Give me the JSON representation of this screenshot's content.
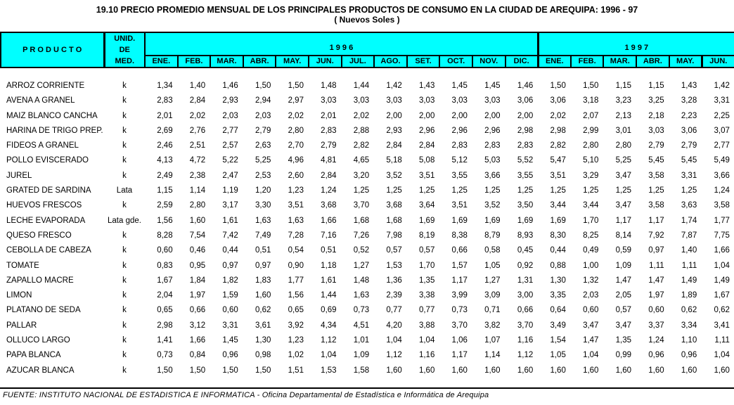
{
  "title": "19.10 PRECIO PROMEDIO MENSUAL DE LOS PRINCIPALES PRODUCTOS DE CONSUMO EN LA CIUDAD DE AREQUIPA: 1996 - 97",
  "subtitle": "( Nuevos Soles )",
  "colors": {
    "header_bg": "#00FFFF",
    "border": "#000000",
    "background": "#FFFFFF"
  },
  "table": {
    "product_header": "P R O D U C T O",
    "unit_header_lines": [
      "UNID.",
      "DE",
      "MED."
    ],
    "year_1996_label": "1 9 9 6",
    "year_1997_label": "1 9 9 7",
    "months_1996": [
      "ENE.",
      "FEB.",
      "MAR.",
      "ABR.",
      "MAY.",
      "JUN.",
      "JUL.",
      "AGO.",
      "SET.",
      "OCT.",
      "NOV.",
      "DIC."
    ],
    "months_1997": [
      "ENE.",
      "FEB.",
      "MAR.",
      "ABR.",
      "MAY.",
      "JUN."
    ],
    "rows": [
      {
        "product": "ARROZ CORRIENTE",
        "unit": "k",
        "values_1996": [
          "1,34",
          "1,40",
          "1,46",
          "1,50",
          "1,50",
          "1,48",
          "1,44",
          "1,42",
          "1,43",
          "1,45",
          "1,45",
          "1,46"
        ],
        "values_1997": [
          "1,50",
          "1,50",
          "1,15",
          "1,15",
          "1,43",
          "1,42"
        ]
      },
      {
        "product": "AVENA A GRANEL",
        "unit": "k",
        "values_1996": [
          "2,83",
          "2,84",
          "2,93",
          "2,94",
          "2,97",
          "3,03",
          "3,03",
          "3,03",
          "3,03",
          "3,03",
          "3,03",
          "3,06"
        ],
        "values_1997": [
          "3,06",
          "3,18",
          "3,23",
          "3,25",
          "3,28",
          "3,31"
        ]
      },
      {
        "product": "MAIZ BLANCO CANCHA",
        "unit": "k",
        "values_1996": [
          "2,01",
          "2,02",
          "2,03",
          "2,03",
          "2,02",
          "2,01",
          "2,02",
          "2,00",
          "2,00",
          "2,00",
          "2,00",
          "2,00"
        ],
        "values_1997": [
          "2,02",
          "2,07",
          "2,13",
          "2,18",
          "2,23",
          "2,25"
        ]
      },
      {
        "product": "HARINA DE TRIGO PREP.",
        "unit": "k",
        "values_1996": [
          "2,69",
          "2,76",
          "2,77",
          "2,79",
          "2,80",
          "2,83",
          "2,88",
          "2,93",
          "2,96",
          "2,96",
          "2,96",
          "2,98"
        ],
        "values_1997": [
          "2,98",
          "2,99",
          "3,01",
          "3,03",
          "3,06",
          "3,07"
        ]
      },
      {
        "product": "FIDEOS A GRANEL",
        "unit": "k",
        "values_1996": [
          "2,46",
          "2,51",
          "2,57",
          "2,63",
          "2,70",
          "2,79",
          "2,82",
          "2,84",
          "2,84",
          "2,83",
          "2,83",
          "2,83"
        ],
        "values_1997": [
          "2,82",
          "2,80",
          "2,80",
          "2,79",
          "2,79",
          "2,77"
        ]
      },
      {
        "product": "POLLO EVISCERADO",
        "unit": "k",
        "values_1996": [
          "4,13",
          "4,72",
          "5,22",
          "5,25",
          "4,96",
          "4,81",
          "4,65",
          "5,18",
          "5,08",
          "5,12",
          "5,03",
          "5,52"
        ],
        "values_1997": [
          "5,47",
          "5,10",
          "5,25",
          "5,45",
          "5,45",
          "5,49"
        ]
      },
      {
        "product": "JUREL",
        "unit": "k",
        "values_1996": [
          "2,49",
          "2,38",
          "2,47",
          "2,53",
          "2,60",
          "2,84",
          "3,20",
          "3,52",
          "3,51",
          "3,55",
          "3,66",
          "3,55"
        ],
        "values_1997": [
          "3,51",
          "3,29",
          "3,47",
          "3,58",
          "3,31",
          "3,66"
        ]
      },
      {
        "product": "GRATED DE SARDINA",
        "unit": "Lata",
        "values_1996": [
          "1,15",
          "1,14",
          "1,19",
          "1,20",
          "1,23",
          "1,24",
          "1,25",
          "1,25",
          "1,25",
          "1,25",
          "1,25",
          "1,25"
        ],
        "values_1997": [
          "1,25",
          "1,25",
          "1,25",
          "1,25",
          "1,25",
          "1,24"
        ]
      },
      {
        "product": "HUEVOS FRESCOS",
        "unit": "k",
        "values_1996": [
          "2,59",
          "2,80",
          "3,17",
          "3,30",
          "3,51",
          "3,68",
          "3,70",
          "3,68",
          "3,64",
          "3,51",
          "3,52",
          "3,50"
        ],
        "values_1997": [
          "3,44",
          "3,44",
          "3,47",
          "3,58",
          "3,63",
          "3,58"
        ]
      },
      {
        "product": "LECHE EVAPORADA",
        "unit": "Lata gde.",
        "values_1996": [
          "1,56",
          "1,60",
          "1,61",
          "1,63",
          "1,63",
          "1,66",
          "1,68",
          "1,68",
          "1,69",
          "1,69",
          "1,69",
          "1,69"
        ],
        "values_1997": [
          "1,69",
          "1,70",
          "1,17",
          "1,17",
          "1,74",
          "1,77"
        ]
      },
      {
        "product": "QUESO FRESCO",
        "unit": "k",
        "values_1996": [
          "8,28",
          "7,54",
          "7,42",
          "7,49",
          "7,28",
          "7,16",
          "7,26",
          "7,98",
          "8,19",
          "8,38",
          "8,79",
          "8,93"
        ],
        "values_1997": [
          "8,30",
          "8,25",
          "8,14",
          "7,92",
          "7,87",
          "7,75"
        ]
      },
      {
        "product": "CEBOLLA DE CABEZA",
        "unit": "k",
        "values_1996": [
          "0,60",
          "0,46",
          "0,44",
          "0,51",
          "0,54",
          "0,51",
          "0,52",
          "0,57",
          "0,57",
          "0,66",
          "0,58",
          "0,45"
        ],
        "values_1997": [
          "0,44",
          "0,49",
          "0,59",
          "0,97",
          "1,40",
          "1,66"
        ]
      },
      {
        "product": "TOMATE",
        "unit": "k",
        "values_1996": [
          "0,83",
          "0,95",
          "0,97",
          "0,97",
          "0,90",
          "1,18",
          "1,27",
          "1,53",
          "1,70",
          "1,57",
          "1,05",
          "0,92"
        ],
        "values_1997": [
          "0,88",
          "1,00",
          "1,09",
          "1,11",
          "1,11",
          "1,04"
        ]
      },
      {
        "product": "ZAPALLO MACRE",
        "unit": "k",
        "values_1996": [
          "1,67",
          "1,84",
          "1,82",
          "1,83",
          "1,77",
          "1,61",
          "1,48",
          "1,36",
          "1,35",
          "1,17",
          "1,27",
          "1,31"
        ],
        "values_1997": [
          "1,30",
          "1,32",
          "1,47",
          "1,47",
          "1,49",
          "1,49"
        ]
      },
      {
        "product": "LIMON",
        "unit": "k",
        "values_1996": [
          "2,04",
          "1,97",
          "1,59",
          "1,60",
          "1,56",
          "1,44",
          "1,63",
          "2,39",
          "3,38",
          "3,99",
          "3,09",
          "3,00"
        ],
        "values_1997": [
          "3,35",
          "2,03",
          "2,05",
          "1,97",
          "1,89",
          "1,67"
        ]
      },
      {
        "product": "PLATANO DE SEDA",
        "unit": "k",
        "values_1996": [
          "0,65",
          "0,66",
          "0,60",
          "0,62",
          "0,65",
          "0,69",
          "0,73",
          "0,77",
          "0,77",
          "0,73",
          "0,71",
          "0,66"
        ],
        "values_1997": [
          "0,64",
          "0,60",
          "0,57",
          "0,60",
          "0,62",
          "0,62"
        ]
      },
      {
        "product": "PALLAR",
        "unit": "k",
        "values_1996": [
          "2,98",
          "3,12",
          "3,31",
          "3,61",
          "3,92",
          "4,34",
          "4,51",
          "4,20",
          "3,88",
          "3,70",
          "3,82",
          "3,70"
        ],
        "values_1997": [
          "3,49",
          "3,47",
          "3,47",
          "3,37",
          "3,34",
          "3,41"
        ]
      },
      {
        "product": "OLLUCO LARGO",
        "unit": "k",
        "values_1996": [
          "1,41",
          "1,66",
          "1,45",
          "1,30",
          "1,23",
          "1,12",
          "1,01",
          "1,04",
          "1,04",
          "1,06",
          "1,07",
          "1,16"
        ],
        "values_1997": [
          "1,54",
          "1,47",
          "1,35",
          "1,24",
          "1,10",
          "1,11"
        ]
      },
      {
        "product": "PAPA BLANCA",
        "unit": "k",
        "values_1996": [
          "0,73",
          "0,84",
          "0,96",
          "0,98",
          "1,02",
          "1,04",
          "1,09",
          "1,12",
          "1,16",
          "1,17",
          "1,14",
          "1,12"
        ],
        "values_1997": [
          "1,05",
          "1,04",
          "0,99",
          "0,96",
          "0,96",
          "1,04"
        ]
      },
      {
        "product": "AZUCAR BLANCA",
        "unit": "k",
        "values_1996": [
          "1,50",
          "1,50",
          "1,50",
          "1,50",
          "1,51",
          "1,53",
          "1,58",
          "1,60",
          "1,60",
          "1,60",
          "1,60",
          "1,60"
        ],
        "values_1997": [
          "1,60",
          "1,60",
          "1,60",
          "1,60",
          "1,60",
          "1,60"
        ]
      }
    ]
  },
  "footer": {
    "source": "FUENTE: INSTITUTO NACIONAL DE ESTADISTICA E INFORMATICA - Oficina Departamental de Estadística e Informática de Arequipa"
  }
}
